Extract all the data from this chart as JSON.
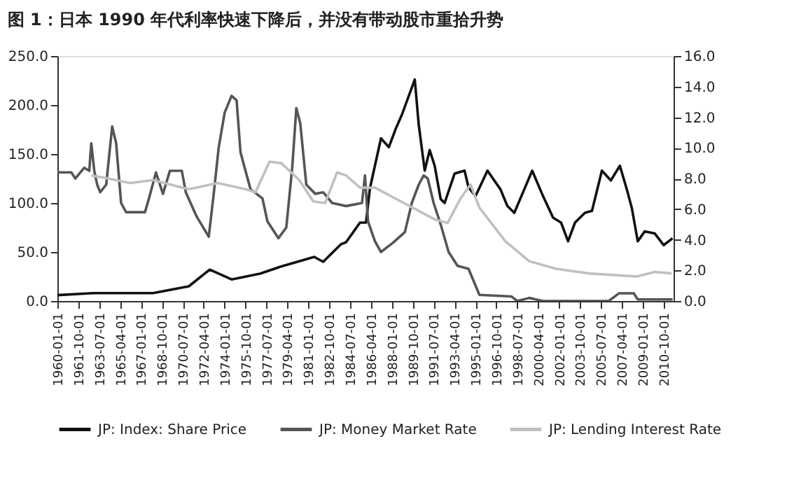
{
  "chart_data": {
    "type": "line",
    "title": "图 1：日本 1990 年代利率快速下降后，并没有带动股市重拾升势",
    "xlim": [
      "1960-01-01",
      "2011-08-01"
    ],
    "xticks": [
      "1960-01-01",
      "1961-10-01",
      "1963-07-01",
      "1965-04-01",
      "1967-01-01",
      "1968-10-01",
      "1970-07-01",
      "1972-04-01",
      "1974-01-01",
      "1975-10-01",
      "1977-07-01",
      "1979-04-01",
      "1981-01-01",
      "1982-10-01",
      "1984-07-01",
      "1986-04-01",
      "1988-01-01",
      "1989-10-01",
      "1991-07-01",
      "1993-04-01",
      "1995-01-01",
      "1996-10-01",
      "1998-07-01",
      "2000-04-01",
      "2002-01-01",
      "2003-10-01",
      "2005-07-01",
      "2007-04-01",
      "2009-01-01",
      "2010-10-01"
    ],
    "ylim": [
      0,
      250
    ],
    "yticks": [
      {
        "value": 0,
        "label": "0.0"
      },
      {
        "value": 50,
        "label": "50.0"
      },
      {
        "value": 100,
        "label": "100.0"
      },
      {
        "value": 150,
        "label": "150.0"
      },
      {
        "value": 200,
        "label": "200.0"
      },
      {
        "value": 250,
        "label": "250.0"
      }
    ],
    "y2lim": [
      0,
      16
    ],
    "y2ticks": [
      {
        "value": 0,
        "label": "0.0"
      },
      {
        "value": 2,
        "label": "2.0"
      },
      {
        "value": 4,
        "label": "4.0"
      },
      {
        "value": 6,
        "label": "6.0"
      },
      {
        "value": 8,
        "label": "8.0"
      },
      {
        "value": 10,
        "label": "10.0"
      },
      {
        "value": 12,
        "label": "12.0"
      },
      {
        "value": 14,
        "label": "14.0"
      },
      {
        "value": 16,
        "label": "16.0"
      }
    ],
    "grid": false,
    "legend": "bottom",
    "marker": "none",
    "line_style": "solid",
    "series": [
      {
        "name": "JP: Index: Share Price",
        "color": "#111111",
        "x": [
          "1960-01",
          "1963-01",
          "1968-01",
          "1971-01",
          "1972-10",
          "1974-08",
          "1977-01",
          "1978-09",
          "1981-07",
          "1982-04",
          "1983-10",
          "1984-03",
          "1985-05",
          "1985-11",
          "1986-03",
          "1987-02",
          "1987-10",
          "1988-05",
          "1988-11",
          "1989-12",
          "1990-04",
          "1990-10",
          "1991-03",
          "1991-08",
          "1992-02",
          "1992-06",
          "1993-04",
          "1994-02",
          "1994-06",
          "1995-01",
          "1996-01",
          "1997-02",
          "1997-09",
          "1998-04",
          "1999-02",
          "1999-10",
          "2000-08",
          "2001-07",
          "2002-03",
          "2002-10",
          "2003-05",
          "2004-03",
          "2004-10",
          "2005-08",
          "2006-05",
          "2007-02",
          "2007-09",
          "2008-02",
          "2008-08",
          "2009-03",
          "2010-01",
          "2010-10",
          "2011-07"
        ],
        "values": [
          6,
          8,
          8,
          15,
          32,
          22,
          28,
          35,
          45,
          40,
          58,
          60,
          80,
          80,
          115,
          166,
          157,
          176,
          190,
          226,
          180,
          133,
          154,
          138,
          104,
          100,
          130,
          133,
          116,
          107,
          133,
          114,
          97,
          90,
          114,
          133,
          109,
          85,
          80,
          61,
          80,
          90,
          92,
          133,
          123,
          138,
          114,
          95,
          61,
          71,
          69,
          57,
          64
        ]
      },
      {
        "name": "JP: Money Market Rate",
        "color": "#555555",
        "axis": "y2",
        "x": [
          "1960-01",
          "1961-03",
          "1961-07",
          "1962-04",
          "1962-09",
          "1962-11",
          "1963-02",
          "1963-05",
          "1963-08",
          "1964-02",
          "1964-08",
          "1964-12",
          "1965-05",
          "1965-10",
          "1967-05",
          "1967-09",
          "1968-04",
          "1968-11",
          "1969-06",
          "1970-06",
          "1970-10",
          "1971-09",
          "1972-09",
          "1973-02",
          "1973-07",
          "1974-01",
          "1974-08",
          "1975-01",
          "1975-05",
          "1976-03",
          "1977-03",
          "1977-08",
          "1978-07",
          "1979-03",
          "1979-09",
          "1980-01",
          "1980-05",
          "1980-11",
          "1981-08",
          "1982-04",
          "1983-01",
          "1984-03",
          "1985-07",
          "1985-10",
          "1986-01",
          "1986-08",
          "1987-02",
          "1988-02",
          "1989-02",
          "1989-09",
          "1990-04",
          "1990-09",
          "1991-01",
          "1991-07",
          "1992-02",
          "1992-10",
          "1993-07",
          "1994-06",
          "1995-05",
          "1998-01",
          "1998-07",
          "1999-07",
          "2000-09",
          "2006-03",
          "2007-01",
          "2008-04",
          "2008-08",
          "2011-07"
        ],
        "values": [
          8.4,
          8.4,
          8.0,
          8.7,
          8.5,
          10.3,
          8.5,
          7.6,
          7.1,
          7.6,
          11.4,
          10.3,
          6.4,
          5.8,
          5.8,
          6.7,
          8.4,
          7.0,
          8.5,
          8.5,
          7.1,
          5.5,
          4.2,
          7.0,
          10.0,
          12.3,
          13.4,
          13.1,
          9.7,
          7.3,
          6.7,
          5.2,
          4.1,
          4.8,
          8.8,
          12.6,
          11.6,
          7.6,
          7.0,
          7.1,
          6.4,
          6.2,
          6.4,
          8.2,
          5.2,
          3.9,
          3.2,
          3.8,
          4.5,
          6.4,
          7.6,
          8.2,
          8.0,
          6.4,
          5.0,
          3.2,
          2.3,
          2.1,
          0.4,
          0.3,
          0.0,
          0.2,
          0.0,
          0.0,
          0.5,
          0.5,
          0.1,
          0.1
        ]
      },
      {
        "name": "JP: Lending Interest Rate",
        "color": "#c0c0c0",
        "axis": "y2",
        "x": [
          "1962-11",
          "1964-04",
          "1966-02",
          "1968-01",
          "1971-01",
          "1973-06",
          "1975-10",
          "1976-08",
          "1977-10",
          "1978-10",
          "1980-04",
          "1981-06",
          "1982-06",
          "1983-06",
          "1984-03",
          "1985-05",
          "1986-08",
          "1989-01",
          "1991-09",
          "1992-09",
          "1993-10",
          "1994-08",
          "1995-05",
          "1997-07",
          "1999-07",
          "2001-10",
          "2004-07",
          "2008-07",
          "2010-01",
          "2011-06"
        ],
        "values": [
          8.2,
          8.0,
          7.7,
          7.9,
          7.3,
          7.7,
          7.3,
          7.1,
          9.1,
          9.0,
          7.9,
          6.5,
          6.4,
          8.4,
          8.2,
          7.4,
          7.4,
          6.4,
          5.3,
          5.1,
          6.7,
          7.6,
          6.1,
          3.9,
          2.6,
          2.1,
          1.8,
          1.6,
          1.9,
          1.8
        ]
      }
    ]
  }
}
